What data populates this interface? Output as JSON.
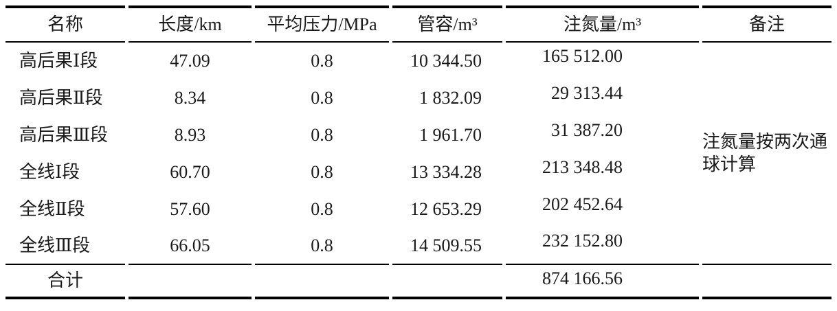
{
  "colors": {
    "background": "#ffffff",
    "text": "#1a1a1a",
    "rule_line": "#000000"
  },
  "table": {
    "columns": [
      {
        "key": "name",
        "label": "名称"
      },
      {
        "key": "length",
        "label": "长度/km"
      },
      {
        "key": "pressure",
        "label": "平均压力/MPa"
      },
      {
        "key": "volume",
        "label": "管容/m³"
      },
      {
        "key": "nitrogen",
        "label": "注氮量/m³"
      },
      {
        "key": "remark",
        "label": "备注"
      }
    ],
    "rows": [
      {
        "name": "高后果Ⅰ段",
        "length": "47.09",
        "pressure": "0.8",
        "volume": "10 344.50",
        "nitrogen": "165 512.00"
      },
      {
        "name": "高后果Ⅱ段",
        "length": "8.34",
        "pressure": "0.8",
        "volume": "1 832.09",
        "nitrogen": "29 313.44"
      },
      {
        "name": "高后果Ⅲ段",
        "length": "8.93",
        "pressure": "0.8",
        "volume": "1 961.70",
        "nitrogen": "31 387.20"
      },
      {
        "name": "全线Ⅰ段",
        "length": "60.70",
        "pressure": "0.8",
        "volume": "13 334.28",
        "nitrogen": "213 348.48"
      },
      {
        "name": "全线Ⅱ段",
        "length": "57.60",
        "pressure": "0.8",
        "volume": "12 653.29",
        "nitrogen": "202 452.64"
      },
      {
        "name": "全线Ⅲ段",
        "length": "66.05",
        "pressure": "0.8",
        "volume": "14 509.55",
        "nitrogen": "232 152.80"
      }
    ],
    "remark": "注氮量按两次通球计算",
    "total": {
      "label": "合计",
      "nitrogen": "874 166.56"
    }
  }
}
